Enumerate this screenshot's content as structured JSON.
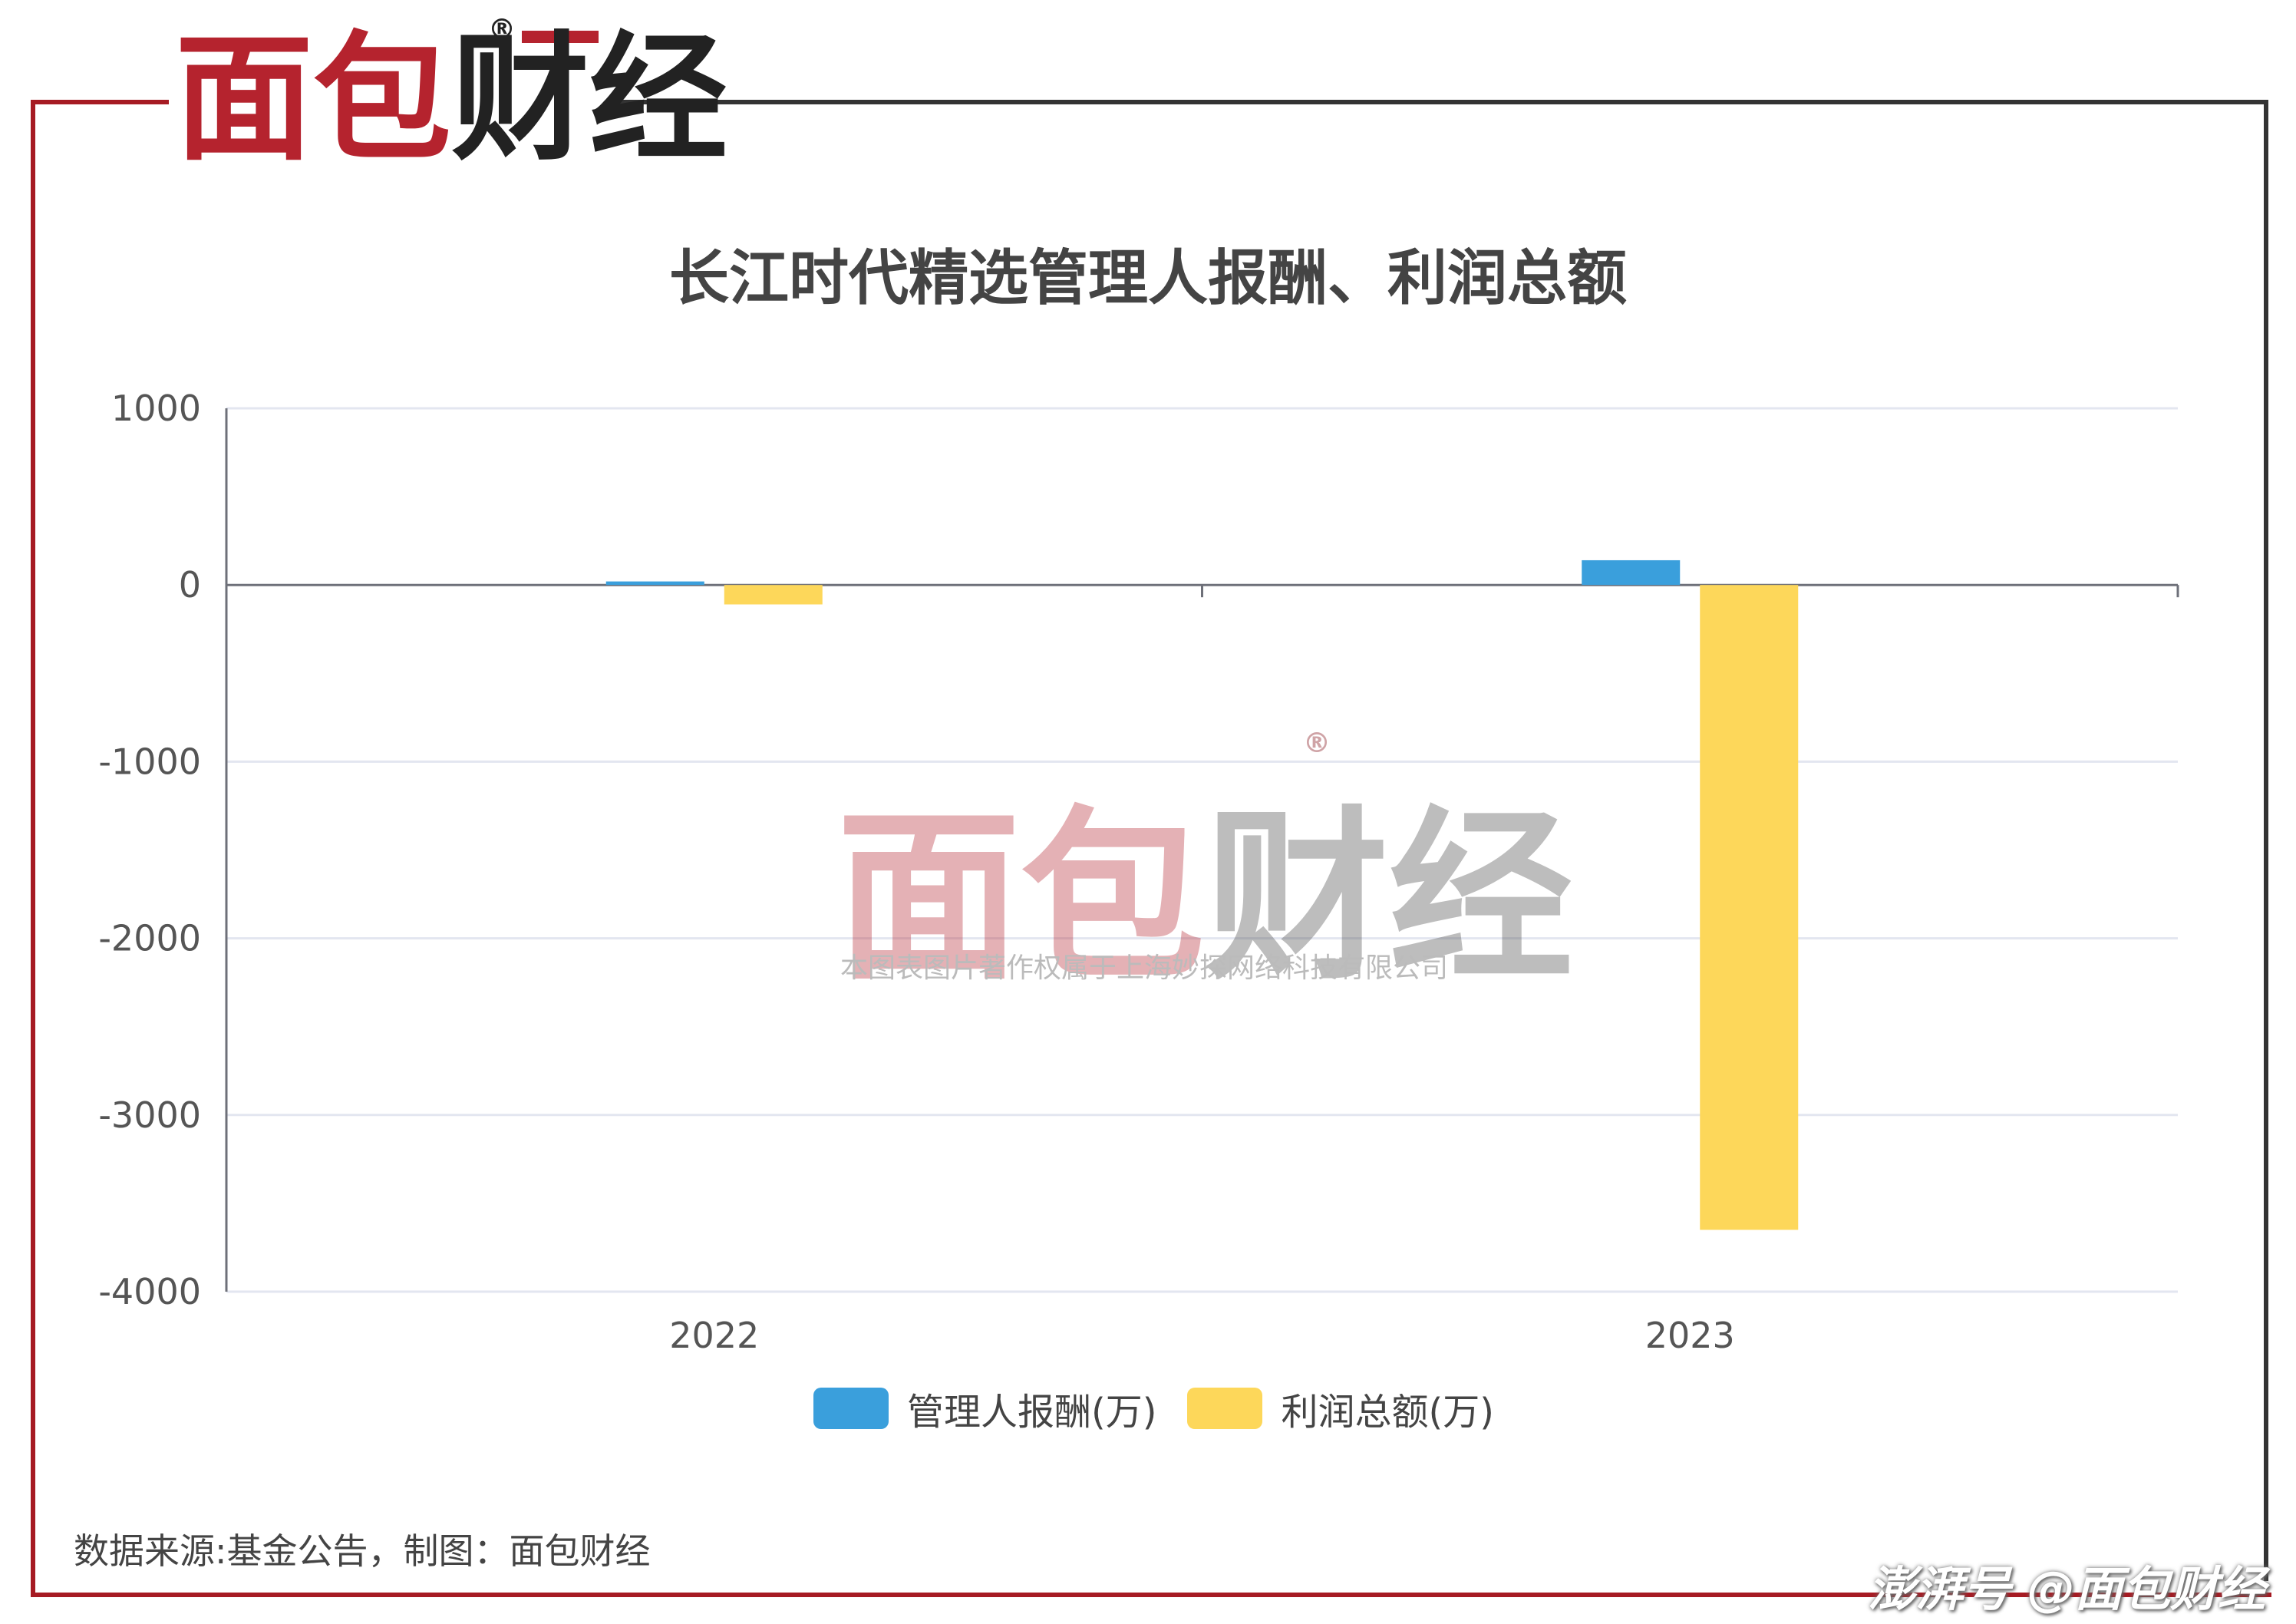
{
  "brand": {
    "logo_part1": "面包",
    "logo_part2": "财经",
    "registered": "®",
    "red": "#b5232e",
    "dark": "#222222",
    "frame_color_left": "#a61b23",
    "frame_color_right": "#333333"
  },
  "watermark": {
    "logo_part1": "面包",
    "logo_part2": "财经",
    "registered": "®",
    "copyright": "本图表图片著作权属于上海妙探网络科技有限公司"
  },
  "chart_data": {
    "type": "bar",
    "title": "长江时代精选管理人报酬、利润总额",
    "categories": [
      "2022",
      "2023"
    ],
    "series": [
      {
        "name": "管理人报酬(万)",
        "color": "#3a9fdc",
        "values": [
          20,
          140
        ]
      },
      {
        "name": "利润总额(万)",
        "color": "#fdd75a",
        "values": [
          -110,
          -3650
        ]
      }
    ],
    "ylim": [
      -4000,
      1000
    ],
    "yticks": [
      1000,
      0,
      -1000,
      -2000,
      -3000,
      -4000
    ],
    "grid": true,
    "legend": "bottom"
  },
  "source_note": "数据来源:基金公告，制图：面包财经",
  "platform_mark": "澎湃号 @面包财经"
}
